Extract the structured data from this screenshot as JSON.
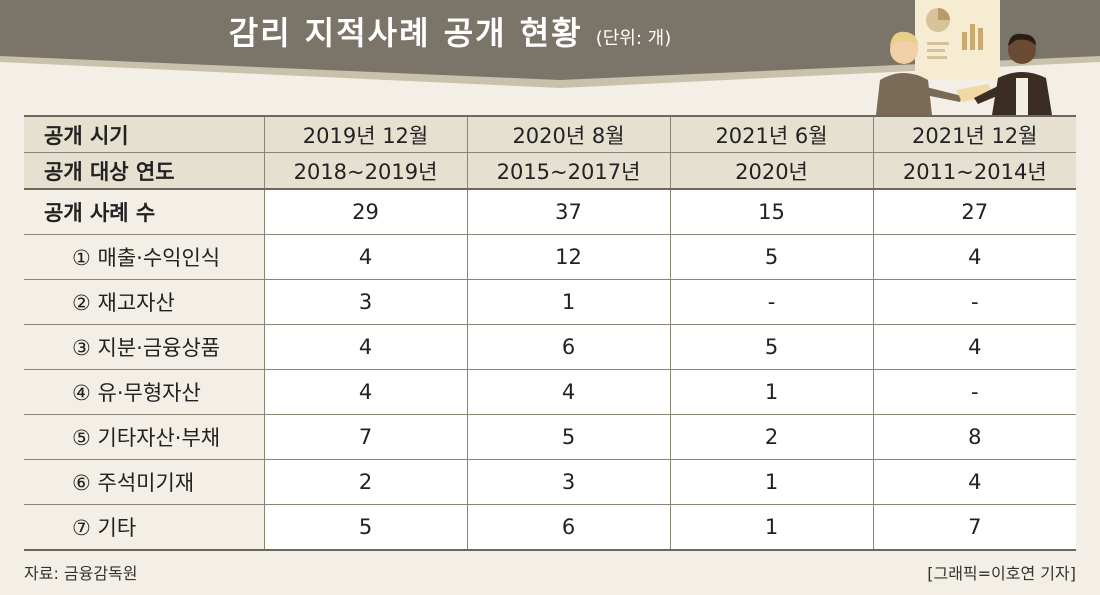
{
  "title": "감리 지적사례 공개 현황",
  "unit": "(단위: 개)",
  "chart_data": {
    "type": "table",
    "columns": [
      "2019년 12월",
      "2020년 8월",
      "2021년 6월",
      "2021년 12월"
    ],
    "header_rows": [
      {
        "label": "공개 시기",
        "values": [
          "2019년 12월",
          "2020년 8월",
          "2021년 6월",
          "2021년 12월"
        ]
      },
      {
        "label": "공개 대상 연도",
        "values": [
          "2018~2019년",
          "2015~2017년",
          "2020년",
          "2011~2014년"
        ]
      }
    ],
    "rows": [
      {
        "label": "공개 사례 수",
        "values": [
          "29",
          "37",
          "15",
          "27"
        ],
        "total": true
      },
      {
        "label": "① 매출·수익인식",
        "values": [
          "4",
          "12",
          "5",
          "4"
        ]
      },
      {
        "label": "② 재고자산",
        "values": [
          "3",
          "1",
          "-",
          "-"
        ]
      },
      {
        "label": "③ 지분·금융상품",
        "values": [
          "4",
          "6",
          "5",
          "4"
        ]
      },
      {
        "label": "④ 유·무형자산",
        "values": [
          "4",
          "4",
          "1",
          "-"
        ]
      },
      {
        "label": "⑤ 기타자산·부채",
        "values": [
          "7",
          "5",
          "2",
          "8"
        ]
      },
      {
        "label": "⑥ 주석미기재",
        "values": [
          "2",
          "3",
          "1",
          "4"
        ]
      },
      {
        "label": "⑦ 기타",
        "values": [
          "5",
          "6",
          "1",
          "7"
        ]
      }
    ]
  },
  "source": "자료: 금융감독원",
  "credit": "[그래픽=이호연 기자]",
  "colors": {
    "banner": "#7b7469",
    "banner_stripe": "#c9c1ac",
    "header_bg": "#e6e0d1",
    "page_bg": "#f3efe6",
    "grid": "#8a8376"
  }
}
